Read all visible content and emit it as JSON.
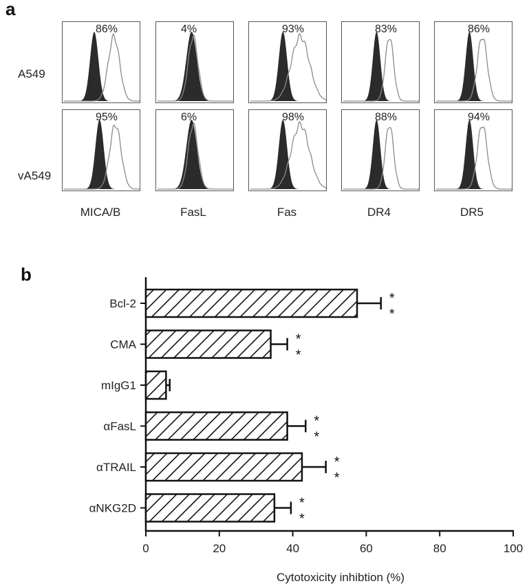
{
  "panel_a": {
    "letter": "a",
    "rows": [
      {
        "label": "A549",
        "percents": [
          "86%",
          "4%",
          "93%",
          "83%",
          "86%"
        ]
      },
      {
        "label": "vA549",
        "percents": [
          "95%",
          "6%",
          "98%",
          "88%",
          "94%"
        ]
      }
    ],
    "columns": [
      "MICA/B",
      "FasL",
      "Fas",
      "DR4",
      "DR5"
    ]
  },
  "panel_b": {
    "letter": "b"
  },
  "chart_data": [
    {
      "type": "histogram-grid",
      "row_labels": [
        "A549",
        "vA549"
      ],
      "column_labels": [
        "MICA/B",
        "FasL",
        "Fas",
        "DR4",
        "DR5"
      ],
      "percent_positive": [
        [
          "86%",
          "4%",
          "93%",
          "83%",
          "86%"
        ],
        [
          "95%",
          "6%",
          "98%",
          "88%",
          "94%"
        ]
      ],
      "colors": {
        "isotype_fill": "#2b2b2b",
        "stain_line": "#8a8a8a"
      }
    },
    {
      "type": "bar",
      "orientation": "horizontal",
      "categories": [
        "Bcl-2",
        "CMA",
        "mIgG1",
        "αFasL",
        "αTRAIL",
        "αNKG2D"
      ],
      "values": [
        57.5,
        34.0,
        5.5,
        38.5,
        42.5,
        35.0
      ],
      "errors": [
        6.5,
        4.5,
        1.0,
        5.0,
        6.5,
        4.5
      ],
      "significance": [
        "**",
        "**",
        "",
        "**",
        "**",
        "**"
      ],
      "xlabel": "Cytotoxicity inhibtion (%)",
      "xlim": [
        0,
        100
      ],
      "xticks": [
        "0",
        "20",
        "40",
        "60",
        "80",
        "100"
      ],
      "bar_fill": "hatched",
      "grid": false
    }
  ]
}
